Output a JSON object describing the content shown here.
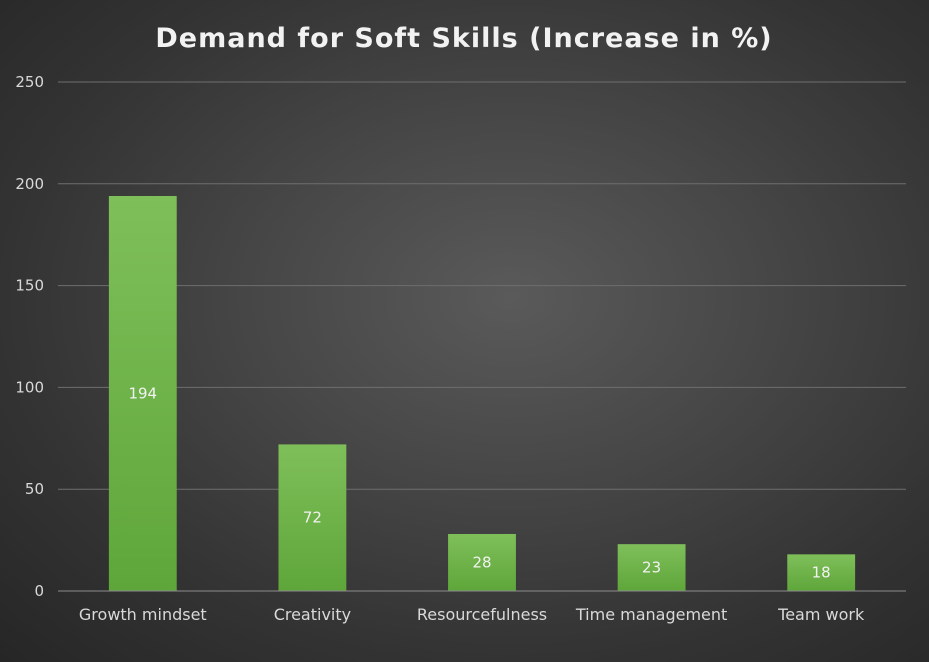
{
  "chart_data": {
    "type": "bar",
    "title": "Demand for Soft Skills (Increase in %)",
    "categories": [
      "Growth mindset",
      "Creativity",
      "Resourcefulness",
      "Time management",
      "Team work"
    ],
    "values": [
      194,
      72,
      28,
      23,
      18
    ],
    "data_labels": [
      "194",
      "72",
      "28",
      "23",
      "18"
    ],
    "y_ticks": [
      "0",
      "50",
      "100",
      "150",
      "200",
      "250"
    ],
    "ylim": [
      0,
      250
    ],
    "grid": true,
    "legend": "none",
    "bar_color": "#6fb545",
    "bar_color_top": "#7fbf5a",
    "bar_color_bottom": "#5ea63a"
  }
}
